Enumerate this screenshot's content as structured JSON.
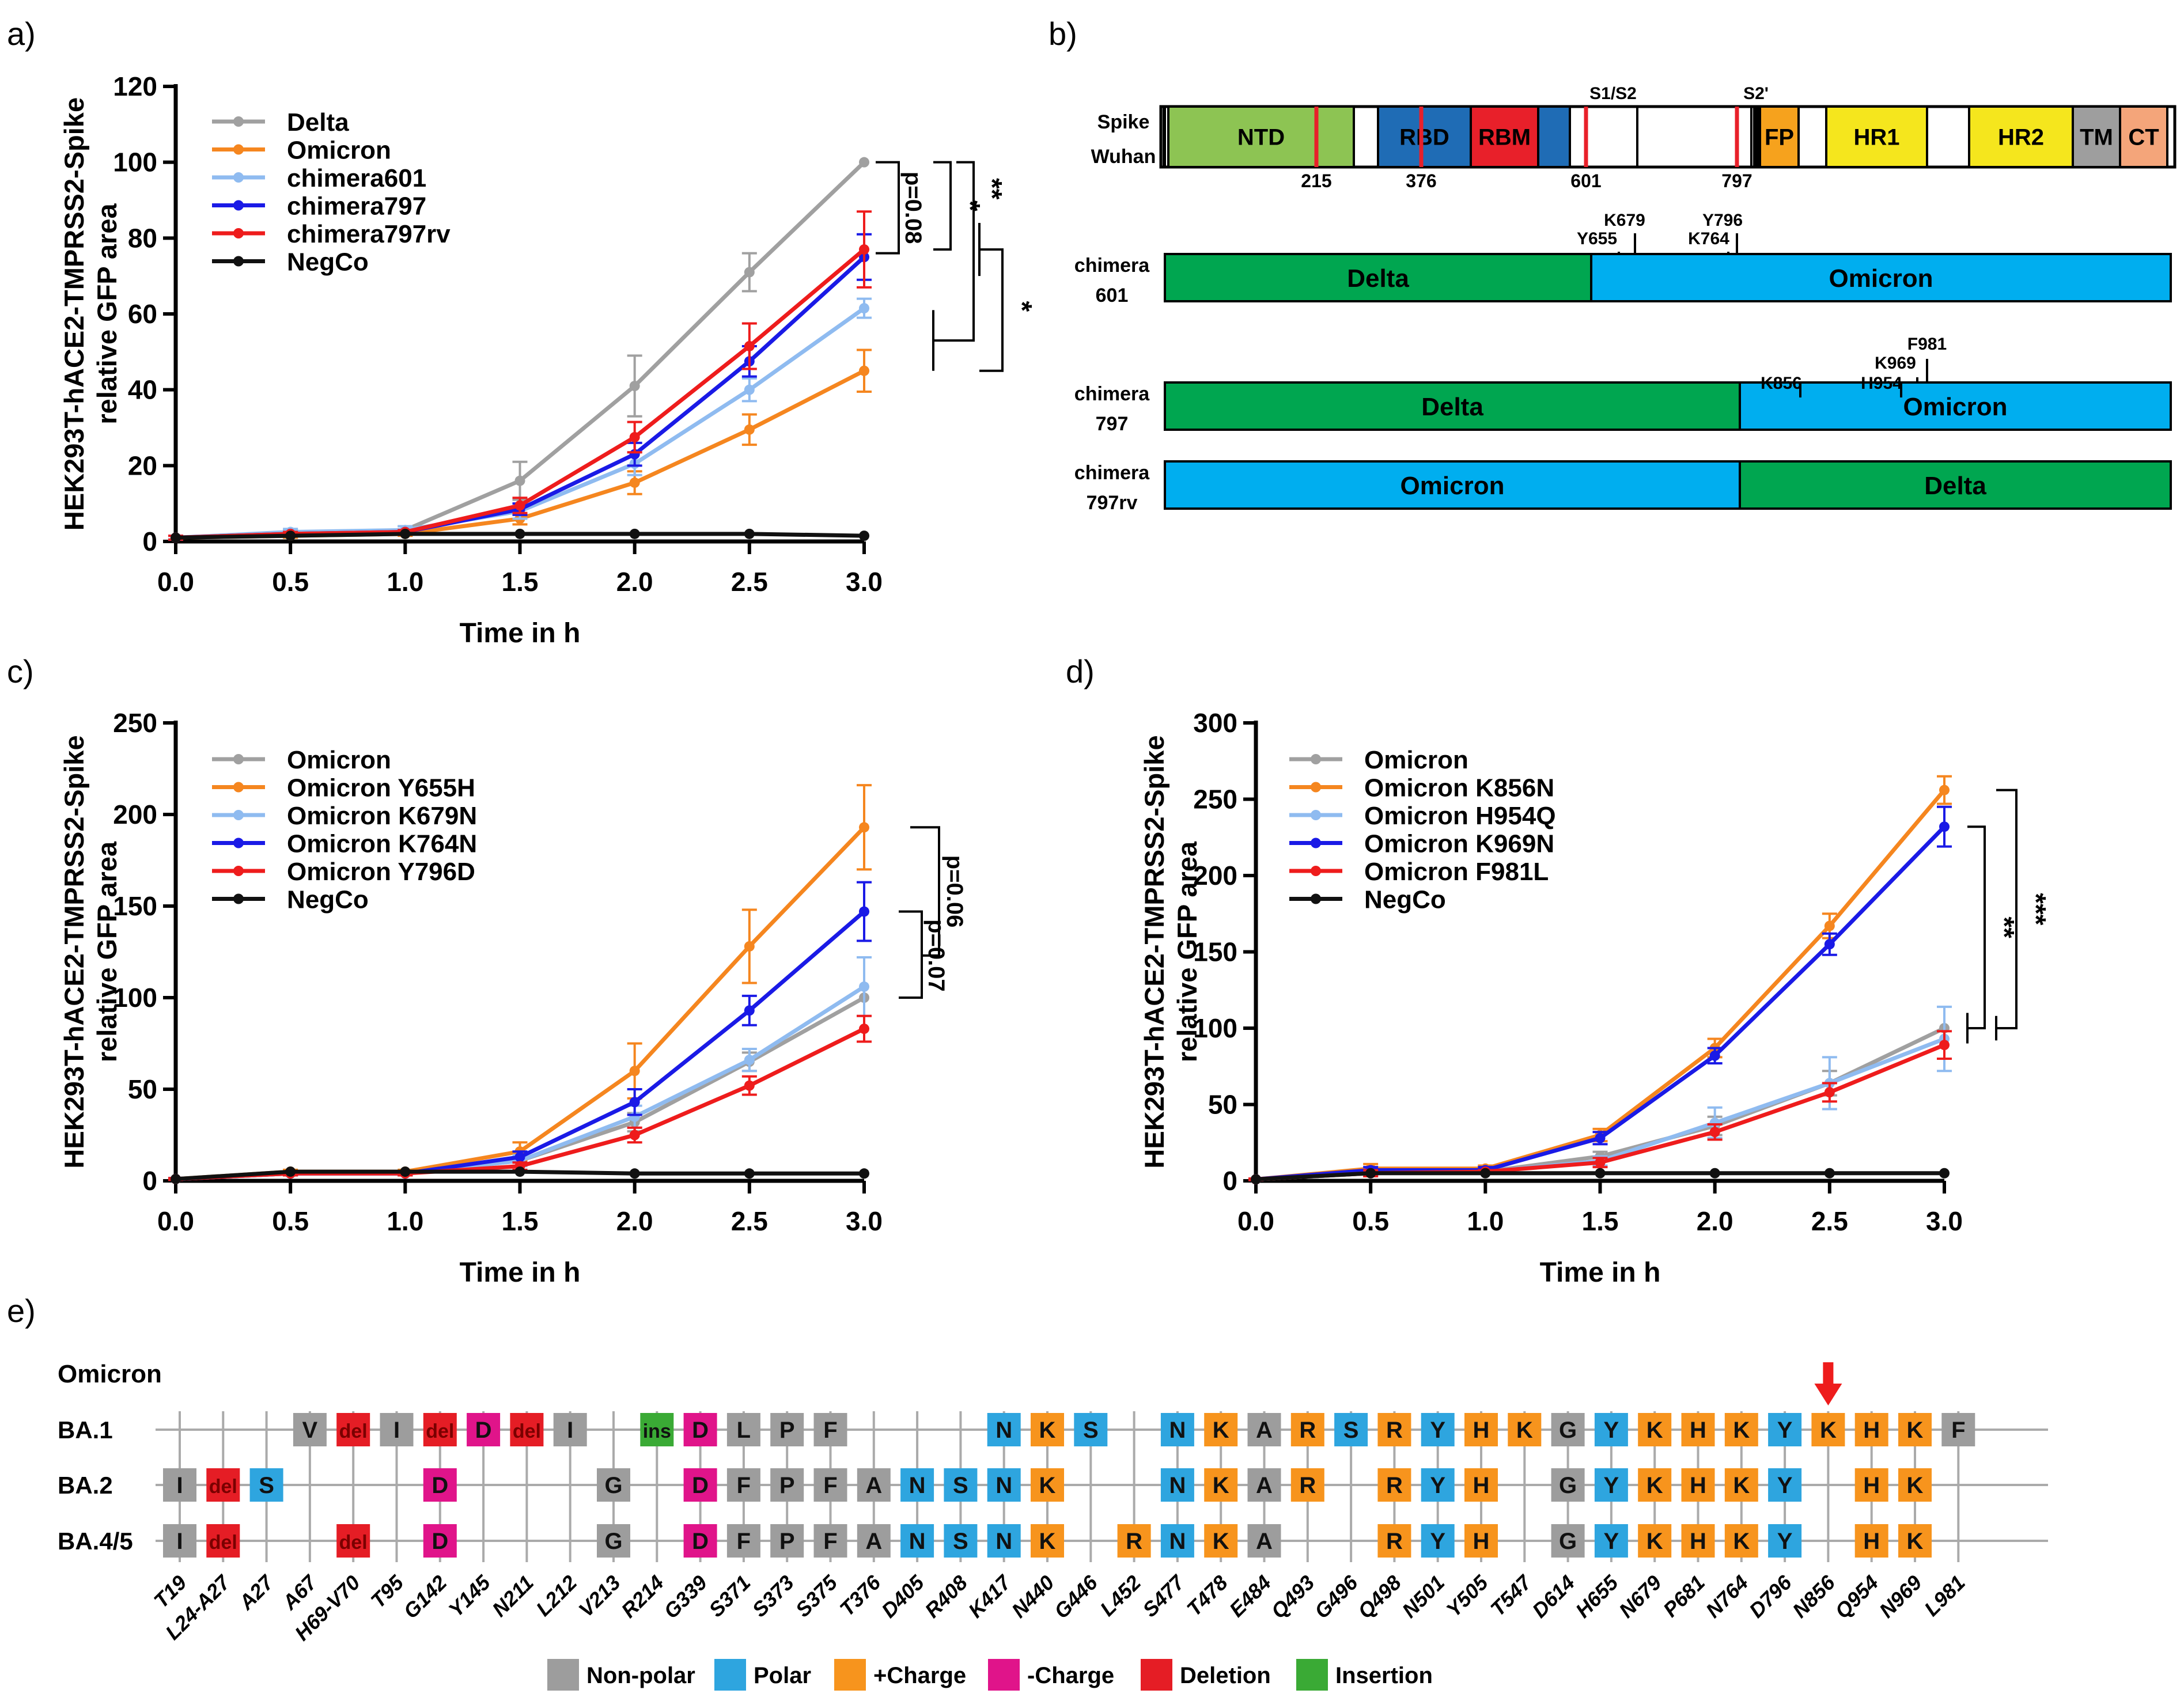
{
  "panel_labels": {
    "a": "a)",
    "b": "b)",
    "c": "c)",
    "d": "d)",
    "e": "e)"
  },
  "colors": {
    "gray": "#a0a0a0",
    "orange": "#f5861f",
    "lightblue": "#8fbbf0",
    "blue": "#1a1ae6",
    "red": "#ee1c1c",
    "black": "#111111",
    "ntd": "#8dc453",
    "rbd": "#1f6cb5",
    "rbm": "#e8202a",
    "fp": "#f6a21d",
    "hr": "#f5e61d",
    "tm": "#9e9e9e",
    "ct": "#f4a57a",
    "delta": "#00a650",
    "omicron": "#00aeef",
    "legend_nonpolar": "#9d9d9d",
    "legend_polar": "#2ea5df",
    "legend_pos": "#f7941d",
    "legend_neg": "#e0148a",
    "legend_del": "#e51d25",
    "legend_ins": "#3aaa35"
  },
  "chart_data": [
    {
      "id": "a",
      "type": "line",
      "ylabel": "HEK293T-hACE2-TMPRSS2-Spike relative GFP area",
      "xlabel": "Time in h",
      "xlim": [
        0,
        3
      ],
      "ylim": [
        0,
        120
      ],
      "x": [
        0,
        0.5,
        1,
        1.5,
        2,
        2.5,
        3
      ],
      "xticks": [
        "0.0",
        "0.5",
        "1.0",
        "1.5",
        "2.0",
        "2.5",
        "3.0"
      ],
      "yticks": [
        "0",
        "20",
        "40",
        "60",
        "80",
        "100",
        "120"
      ],
      "yticks_values": [
        0,
        20,
        40,
        60,
        80,
        100,
        120
      ],
      "series": [
        {
          "name": "Delta",
          "color": "#a0a0a0",
          "values": [
            1,
            2,
            3,
            16,
            41,
            71,
            100
          ],
          "errors": [
            0.5,
            1,
            1,
            5,
            8,
            5,
            0
          ]
        },
        {
          "name": "Omicron",
          "color": "#f5861f",
          "values": [
            1,
            1.5,
            2,
            6,
            15.5,
            29.5,
            45
          ],
          "errors": [
            0.5,
            0.5,
            0.5,
            1.5,
            3,
            4,
            5.5
          ]
        },
        {
          "name": "chimera601",
          "color": "#8fbbf0",
          "values": [
            1,
            2.5,
            3,
            8,
            20.5,
            40,
            61.5
          ],
          "errors": [
            0.5,
            0.8,
            1,
            2,
            3,
            3,
            2.5
          ]
        },
        {
          "name": "chimera797",
          "color": "#1a1ae6",
          "values": [
            1,
            2,
            2.5,
            8.5,
            23,
            47.5,
            75
          ],
          "errors": [
            0.5,
            0.5,
            0.5,
            1.5,
            3,
            4,
            6
          ]
        },
        {
          "name": "chimera797rv",
          "color": "#ee1c1c",
          "values": [
            1,
            2,
            2.5,
            9.5,
            27.5,
            51.5,
            77
          ],
          "errors": [
            0.5,
            0.5,
            0.5,
            2,
            4,
            6,
            10
          ]
        },
        {
          "name": "NegCo",
          "color": "#111111",
          "values": [
            1,
            1.5,
            2,
            2,
            2,
            2,
            1.5
          ],
          "errors": [
            0,
            0,
            0,
            0,
            0,
            0,
            0
          ]
        }
      ],
      "annotations": [
        "p=0.08",
        "*",
        "**",
        "*"
      ]
    },
    {
      "id": "c",
      "type": "line",
      "ylabel": "HEK293T-hACE2-TMPRSS2-Spike relative GFP area",
      "xlabel": "Time in h",
      "xlim": [
        0,
        3
      ],
      "ylim": [
        0,
        250
      ],
      "x": [
        0,
        0.5,
        1,
        1.5,
        2,
        2.5,
        3
      ],
      "xticks": [
        "0.0",
        "0.5",
        "1.0",
        "1.5",
        "2.0",
        "2.5",
        "3.0"
      ],
      "yticks": [
        "0",
        "50",
        "100",
        "150",
        "200",
        "250"
      ],
      "yticks_values": [
        0,
        50,
        100,
        150,
        200,
        250
      ],
      "series": [
        {
          "name": "Omicron",
          "color": "#a0a0a0",
          "values": [
            1,
            4,
            4,
            11,
            32,
            65,
            100
          ],
          "errors": [
            0.5,
            1,
            1,
            3,
            5,
            5,
            0
          ]
        },
        {
          "name": "Omicron Y655H",
          "color": "#f5861f",
          "values": [
            1,
            5,
            5,
            16,
            60,
            128,
            193
          ],
          "errors": [
            0.5,
            1,
            1,
            5,
            15,
            20,
            23
          ]
        },
        {
          "name": "Omicron K679N",
          "color": "#8fbbf0",
          "values": [
            1,
            4,
            4,
            11,
            35,
            66,
            106
          ],
          "errors": [
            0.5,
            1,
            1,
            3,
            6,
            6,
            16
          ]
        },
        {
          "name": "Omicron K764N",
          "color": "#1a1ae6",
          "values": [
            1,
            4,
            4,
            13,
            43,
            93,
            147
          ],
          "errors": [
            0.5,
            1,
            1,
            3,
            7,
            8,
            16
          ]
        },
        {
          "name": "Omicron Y796D",
          "color": "#ee1c1c",
          "values": [
            1,
            4,
            4,
            8,
            25,
            52,
            83
          ],
          "errors": [
            0.5,
            1,
            1,
            2,
            4,
            5,
            7
          ]
        },
        {
          "name": "NegCo",
          "color": "#111111",
          "values": [
            1,
            5,
            5,
            5,
            4,
            4,
            4
          ],
          "errors": [
            0,
            0,
            0,
            0,
            0,
            0,
            0
          ]
        }
      ],
      "annotations": [
        "p=0.07",
        "p=0.06"
      ]
    },
    {
      "id": "d",
      "type": "line",
      "ylabel": "HEK293T-hACE2-TMPRSS2-Spike relative GFP area",
      "xlabel": "Time in h",
      "xlim": [
        0,
        3
      ],
      "ylim": [
        0,
        300
      ],
      "x": [
        0,
        0.5,
        1,
        1.5,
        2,
        2.5,
        3
      ],
      "xticks": [
        "0.0",
        "0.5",
        "1.0",
        "1.5",
        "2.0",
        "2.5",
        "3.0"
      ],
      "yticks": [
        "0",
        "50",
        "100",
        "150",
        "200",
        "250",
        "300"
      ],
      "yticks_values": [
        0,
        50,
        100,
        150,
        200,
        250,
        300
      ],
      "series": [
        {
          "name": "Omicron",
          "color": "#a0a0a0",
          "values": [
            1,
            5,
            6,
            16,
            36,
            64,
            100
          ],
          "errors": [
            0.5,
            2,
            1,
            3,
            6,
            8,
            0
          ]
        },
        {
          "name": "Omicron K856N",
          "color": "#f5861f",
          "values": [
            1,
            8,
            8,
            30,
            87,
            167,
            256
          ],
          "errors": [
            0.5,
            3,
            2,
            4,
            6,
            8,
            9
          ]
        },
        {
          "name": "Omicron H954Q",
          "color": "#8fbbf0",
          "values": [
            1,
            5,
            6,
            13,
            38,
            64,
            93
          ],
          "errors": [
            0.5,
            2,
            1,
            3,
            10,
            17,
            21
          ]
        },
        {
          "name": "Omicron K969N",
          "color": "#1a1ae6",
          "values": [
            1,
            7,
            7,
            28,
            82,
            155,
            232
          ],
          "errors": [
            0.5,
            2,
            2,
            4,
            5,
            7,
            13
          ]
        },
        {
          "name": "Omicron F981L",
          "color": "#ee1c1c",
          "values": [
            1,
            5,
            6,
            12,
            32,
            58,
            89
          ],
          "errors": [
            0.5,
            2,
            1,
            3,
            5,
            6,
            9
          ]
        },
        {
          "name": "NegCo",
          "color": "#111111",
          "values": [
            1,
            5,
            5,
            5,
            5,
            5,
            5
          ],
          "errors": [
            0,
            0,
            0,
            0,
            0,
            0,
            0
          ]
        }
      ],
      "annotations": [
        "**",
        "***"
      ]
    },
    {
      "id": "b",
      "type": "table",
      "spike_label": [
        "Spike",
        "Wuhan"
      ],
      "domains": [
        "NTD",
        "RBD",
        "RBM",
        "FP",
        "HR1",
        "HR2",
        "TM",
        "CT"
      ],
      "site_labels": [
        "S1/S2",
        "S2'"
      ],
      "positions": [
        "215",
        "376",
        "601",
        "797"
      ],
      "chimeras": [
        {
          "label": [
            "chimera",
            "601"
          ],
          "left": "Delta",
          "right": "Omicron",
          "mutations": [
            "K679",
            "Y796",
            "Y655",
            "K764"
          ]
        },
        {
          "label": [
            "chimera",
            "797"
          ],
          "left": "Delta",
          "right": "Omicron",
          "mutations": [
            "F981",
            "K969",
            "K856",
            "H954"
          ]
        },
        {
          "label": [
            "chimera",
            "797rv"
          ],
          "left": "Omicron",
          "right": "Delta",
          "mutations": []
        }
      ]
    },
    {
      "id": "e",
      "type": "table",
      "title": "Omicron",
      "rows": [
        "BA.1",
        "BA.2",
        "BA.4/5"
      ],
      "positions": [
        "T19",
        "L24-A27",
        "A27",
        "A67",
        "H69-V70",
        "T95",
        "G142",
        "Y145",
        "N211",
        "L212",
        "V213",
        "R214",
        "G339",
        "S371",
        "S373",
        "S375",
        "T376",
        "D405",
        "R408",
        "K417",
        "N440",
        "G446",
        "L452",
        "S477",
        "T478",
        "E484",
        "Q493",
        "G496",
        "Q498",
        "N501",
        "Y505",
        "T547",
        "D614",
        "H655",
        "N679",
        "P681",
        "N764",
        "D796",
        "N856",
        "Q954",
        "N969",
        "L981"
      ],
      "ba1_cells": [
        "",
        "",
        "",
        "V",
        "del",
        "I",
        "del",
        "D",
        "del",
        "I",
        "",
        "ins",
        "D",
        "L",
        "P",
        "F",
        "",
        "",
        "",
        "N",
        "K",
        "S",
        "",
        "N",
        "K",
        "A",
        "R",
        "S",
        "R",
        "Y",
        "H",
        "K",
        "G",
        "Y",
        "K",
        "H",
        "K",
        "Y",
        "K",
        "H",
        "K",
        "F"
      ],
      "ba2_cells": [
        "I",
        "del",
        "S",
        "",
        "",
        "",
        "D",
        "",
        "",
        "",
        "G",
        "",
        "D",
        "F",
        "P",
        "F",
        "A",
        "N",
        "S",
        "N",
        "K",
        "",
        "",
        "N",
        "K",
        "A",
        "R",
        "",
        "R",
        "Y",
        "H",
        "",
        "G",
        "Y",
        "K",
        "H",
        "K",
        "Y",
        "",
        "H",
        "K",
        ""
      ],
      "ba45_cells": [
        "I",
        "del",
        "",
        "",
        "del",
        "",
        "D",
        "",
        "",
        "",
        "G",
        "",
        "D",
        "F",
        "P",
        "F",
        "A",
        "N",
        "S",
        "N",
        "K",
        "",
        "R",
        "N",
        "K",
        "A",
        "",
        "",
        "R",
        "Y",
        "H",
        "",
        "G",
        "Y",
        "K",
        "H",
        "K",
        "Y",
        "",
        "H",
        "K",
        ""
      ],
      "legend": [
        "Non-polar",
        "Polar",
        "+Charge",
        "-Charge",
        "Deletion",
        "Insertion"
      ]
    }
  ]
}
